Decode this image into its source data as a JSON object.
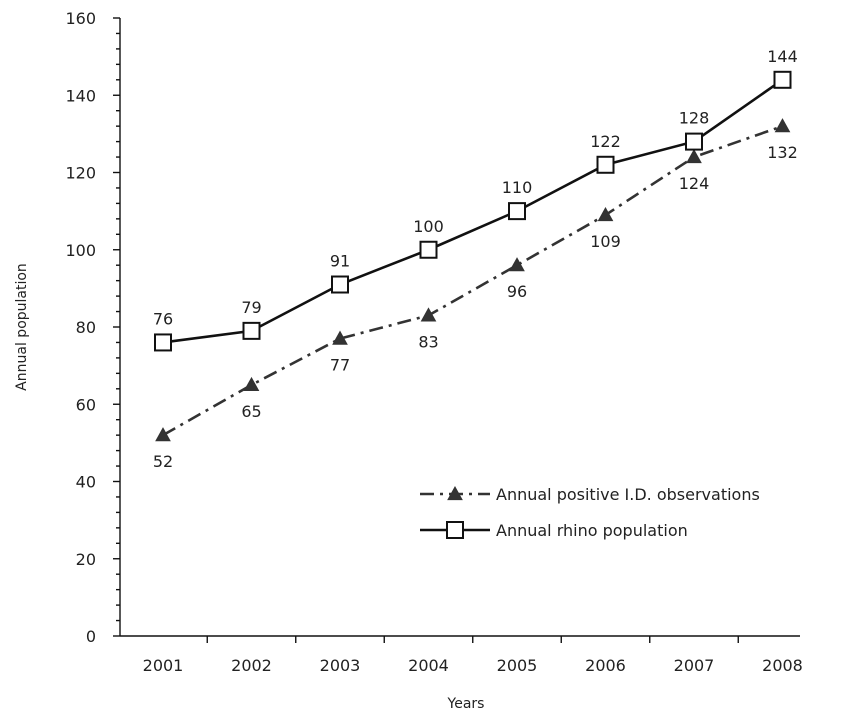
{
  "chart_data": {
    "type": "line",
    "title": "",
    "xlabel": "Years",
    "ylabel": "Annual population",
    "categories": [
      "2001",
      "2002",
      "2003",
      "2004",
      "2005",
      "2006",
      "2007",
      "2008"
    ],
    "ylim": [
      0,
      160
    ],
    "yticks": [
      "0",
      "20",
      "40",
      "60",
      "80",
      "100",
      "120",
      "140",
      "160"
    ],
    "grid": false,
    "legend_position": "bottom-right",
    "series": [
      {
        "name": "Annual positive I.D. observations",
        "values": [
          52,
          65,
          77,
          83,
          96,
          109,
          124,
          132
        ],
        "labels": [
          "52",
          "65",
          "77",
          "83",
          "96",
          "109",
          "124",
          "132"
        ],
        "line_style": "dash-dot",
        "marker": "triangle",
        "color": "#333333"
      },
      {
        "name": "Annual rhino population",
        "values": [
          76,
          79,
          91,
          100,
          110,
          122,
          128,
          144
        ],
        "labels": [
          "76",
          "79",
          "91",
          "100",
          "110",
          "122",
          "128",
          "144"
        ],
        "line_style": "solid",
        "marker": "open-square",
        "color": "#111111"
      }
    ]
  }
}
